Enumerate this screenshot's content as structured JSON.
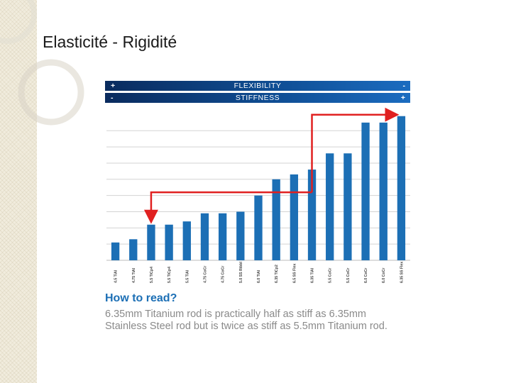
{
  "slide": {
    "title": "Elasticité - Rigidité"
  },
  "header": {
    "flexibility": {
      "label": "FLEXIBILITY",
      "left_sign": "+",
      "right_sign": "-"
    },
    "stiffness": {
      "label": "STIFFNESS",
      "left_sign": "-",
      "right_sign": "+"
    },
    "color_dark": "#0a2b5e",
    "color_light": "#1b6cc0"
  },
  "chart_data": {
    "type": "bar",
    "categories": [
      "4.5 TiAl",
      "4.75 TiAl",
      "5.5 TiCp4",
      "5.5 TiCp4",
      "5.5 TiAl",
      "4.75 CoCr",
      "4.75 CoCr",
      "5.0 SS Ribbl",
      "6.0 TiAl",
      "6.35 TiCp2",
      "6.5 SS Flex",
      "6.35 TiAl",
      "5.5 CoCr",
      "5.5 CoCr",
      "6.0 CoCr",
      "6.0 CoCr",
      "6.35 SS Flex"
    ],
    "values": [
      1.1,
      1.3,
      2.2,
      2.2,
      2.4,
      2.9,
      2.9,
      3.0,
      4.0,
      5.0,
      5.3,
      5.6,
      6.6,
      6.6,
      8.5,
      8.5,
      8.9
    ],
    "ylim": [
      0,
      9.5
    ],
    "grid": true,
    "bar_color": "#1c6fb5",
    "annotation": {
      "type": "arrow-path",
      "color": "#e02020",
      "from_category_index": 11,
      "up_to_category_index": 16,
      "down_to_category_index": 2,
      "level_value": 4.2
    }
  },
  "how_to_read": {
    "title": "How to read?",
    "text": "6.35mm Titanium rod is practically half as stiff as 6.35mm Stainless Steel rod but is twice as stiff as 5.5mm Titanium rod."
  }
}
